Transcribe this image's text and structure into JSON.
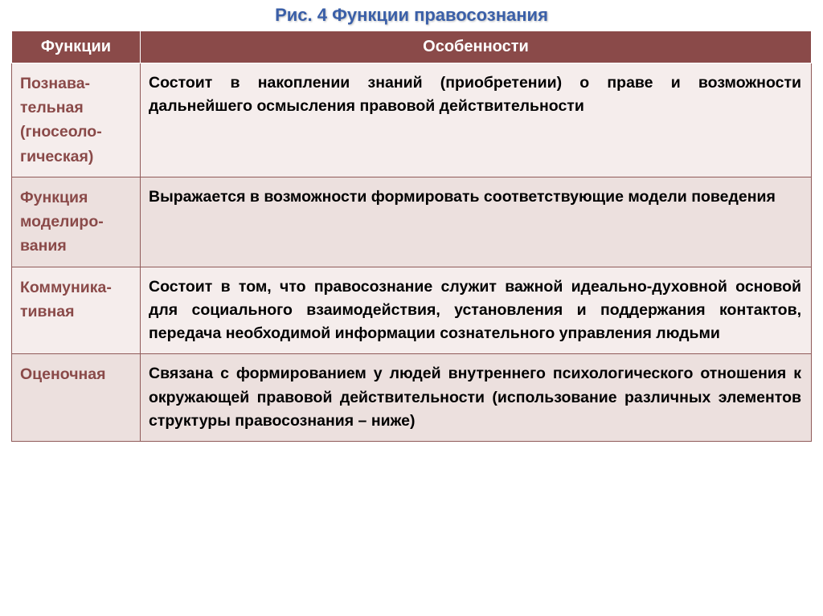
{
  "title": "Рис. 4 Функции правосознания",
  "title_color": "#3a5fa8",
  "columns": [
    "Функции",
    "Особенности"
  ],
  "header_bg": "#8a4a49",
  "header_text_color": "#ffffff",
  "func_text_color": "#8a4a49",
  "feat_text_color": "#000000",
  "border_color": "#905a59",
  "row_bg_alt": [
    "#f5edec",
    "#ece0de"
  ],
  "font_family": "Arial",
  "title_fontsize_pt": 17,
  "header_fontsize_pt": 15,
  "cell_fontsize_pt": 15,
  "rows": [
    {
      "func": "Познава-тельная (гносеоло-гическая)",
      "feat": "Состоит в накоплении знаний (приобретении) о праве и возможности дальнейшего осмысления правовой действительности"
    },
    {
      "func": "Функция моделиро-вания",
      "feat": "Выражается в возможности формировать соответствующие модели поведения"
    },
    {
      "func": "Коммуника-тивная",
      "feat": "Состоит в том, что правосознание служит важной идеально-духовной основой для социального взаимодействия, установления и поддержания контактов, передача необходимой информации сознательного управления людьми"
    },
    {
      "func": "Оценочная",
      "feat": "Связана с формированием у людей внутреннего психологического отношения к окружающей правовой действительности (использование различных элементов структуры правосознания – ниже)"
    }
  ]
}
